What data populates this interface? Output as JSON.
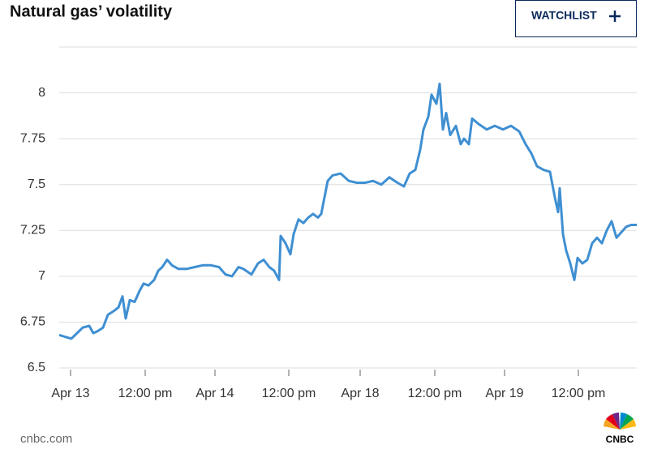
{
  "chart_data": {
    "type": "line",
    "title": "Natural gas’ volatility",
    "color": "#3f8fd2",
    "grid": true,
    "x": [
      0,
      7,
      15,
      22,
      29,
      37,
      42,
      47,
      54,
      60,
      67,
      73,
      78,
      82,
      87,
      93,
      99,
      104,
      110,
      117,
      122,
      127,
      133,
      139,
      147,
      157,
      167,
      177,
      187,
      197,
      205,
      213,
      221,
      227,
      237,
      245,
      252,
      259,
      265,
      271,
      273,
      279,
      285,
      289,
      295,
      301,
      307,
      313,
      319,
      323,
      327,
      331,
      337,
      347,
      357,
      367,
      377,
      387,
      397,
      407,
      417,
      425,
      432,
      439,
      445,
      449,
      455,
      459,
      465,
      469,
      473,
      477,
      482,
      489,
      495,
      499,
      505,
      509,
      517,
      527,
      537,
      547,
      557,
      567,
      575,
      582,
      589,
      597,
      605,
      611,
      615,
      617,
      621,
      625,
      630,
      635,
      639,
      645,
      651,
      657,
      663,
      669,
      675,
      681,
      687,
      693,
      699,
      705,
      712
    ],
    "values": [
      6.68,
      6.67,
      6.66,
      6.69,
      6.72,
      6.73,
      6.69,
      6.7,
      6.72,
      6.79,
      6.81,
      6.83,
      6.89,
      6.77,
      6.87,
      6.86,
      6.92,
      6.96,
      6.95,
      6.98,
      7.03,
      7.05,
      7.09,
      7.06,
      7.04,
      7.04,
      7.05,
      7.06,
      7.06,
      7.05,
      7.01,
      7.0,
      7.05,
      7.04,
      7.01,
      7.07,
      7.09,
      7.05,
      7.03,
      6.98,
      7.22,
      7.18,
      7.12,
      7.23,
      7.31,
      7.29,
      7.32,
      7.34,
      7.32,
      7.34,
      7.43,
      7.52,
      7.55,
      7.56,
      7.52,
      7.51,
      7.51,
      7.52,
      7.5,
      7.54,
      7.51,
      7.49,
      7.56,
      7.58,
      7.69,
      7.8,
      7.87,
      7.99,
      7.94,
      8.05,
      7.8,
      7.89,
      7.77,
      7.82,
      7.72,
      7.75,
      7.72,
      7.86,
      7.83,
      7.8,
      7.82,
      7.8,
      7.82,
      7.79,
      7.72,
      7.67,
      7.6,
      7.58,
      7.57,
      7.43,
      7.35,
      7.48,
      7.23,
      7.14,
      7.07,
      6.98,
      7.1,
      7.07,
      7.09,
      7.18,
      7.21,
      7.18,
      7.25,
      7.3,
      7.21,
      7.24,
      7.27,
      7.28,
      7.28
    ],
    "xlim": [
      0,
      712
    ],
    "xticks": [
      {
        "value": 14,
        "label": "Apr 13"
      },
      {
        "value": 106,
        "label": "12:00 pm"
      },
      {
        "value": 192,
        "label": "Apr 14"
      },
      {
        "value": 283,
        "label": "12:00 pm"
      },
      {
        "value": 371,
        "label": "Apr 18"
      },
      {
        "value": 463,
        "label": "12:00 pm"
      },
      {
        "value": 549,
        "label": "Apr 19"
      },
      {
        "value": 640,
        "label": "12:00 pm"
      }
    ],
    "ylim": [
      6.5,
      8.25
    ],
    "yticks": [
      {
        "value": 6.5,
        "label": "6.5"
      },
      {
        "value": 6.75,
        "label": "6.75"
      },
      7,
      {
        "value": 7.25,
        "label": "7.25"
      },
      {
        "value": 7.5,
        "label": "7.5"
      },
      {
        "value": 7.75,
        "label": "7.75"
      },
      8
    ]
  },
  "header": {
    "button": "WATCHLIST"
  },
  "footer": {
    "source": "cnbc.com",
    "logo": "CNBC"
  }
}
